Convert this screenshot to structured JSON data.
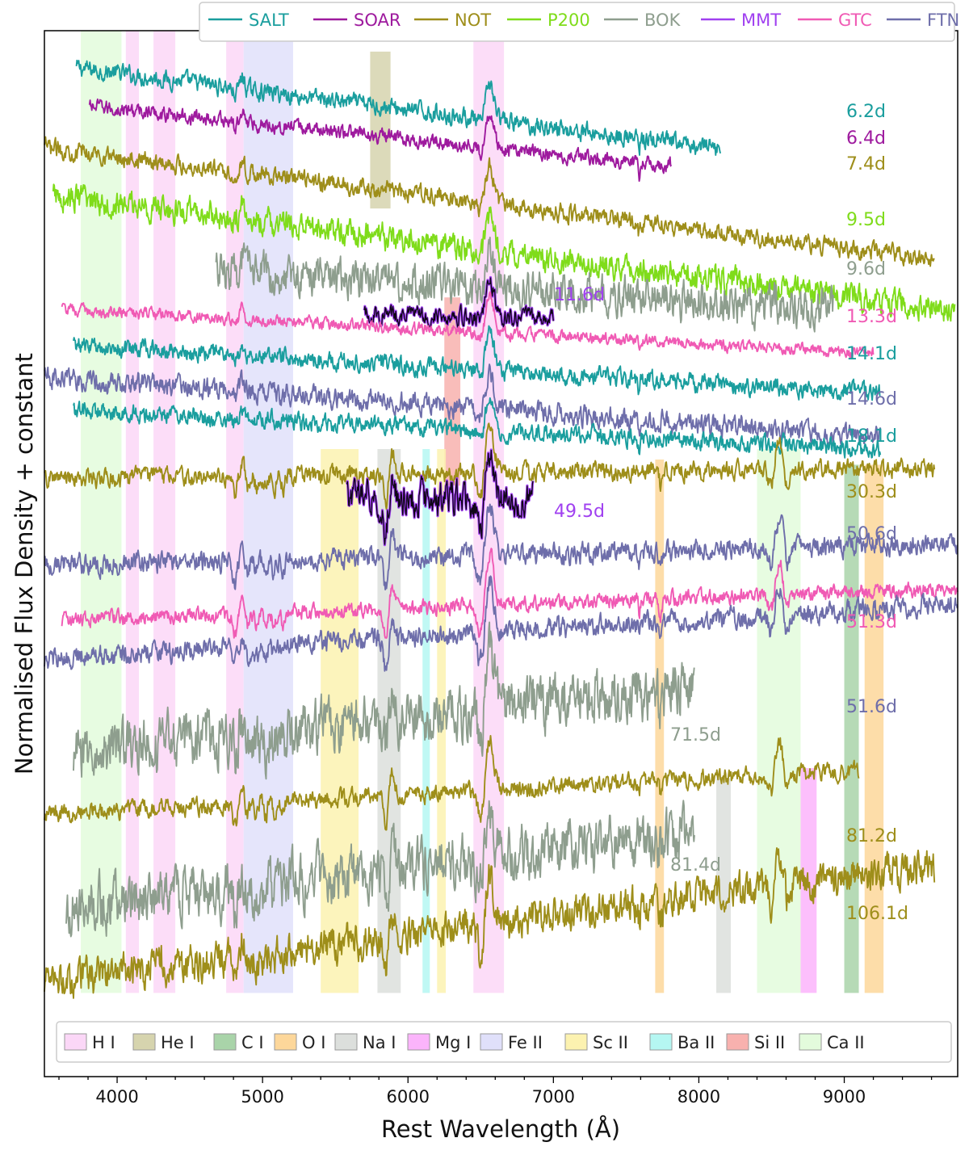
{
  "chart_data": {
    "type": "line",
    "xlabel": "Rest Wavelength (Å)",
    "ylabel": "Normalised Flux Density + constant",
    "xlim": [
      3500,
      9780
    ],
    "x_ticks": [
      4000,
      5000,
      6000,
      7000,
      8000,
      9000
    ],
    "grid": false,
    "telescopes": [
      {
        "name": "SALT",
        "color": "#1a9e9e"
      },
      {
        "name": "SOAR",
        "color": "#9e1a9e"
      },
      {
        "name": "NOT",
        "color": "#9e8e1a"
      },
      {
        "name": "P200",
        "color": "#7fdc1a"
      },
      {
        "name": "BOK",
        "color": "#8e9e8e"
      },
      {
        "name": "MMT",
        "color": "#a040f0"
      },
      {
        "name": "GTC",
        "color": "#f05ab4"
      },
      {
        "name": "FTN",
        "color": "#6e6eaa"
      }
    ],
    "telescope_legend_position": "top-center",
    "line_species": [
      {
        "name": "H I",
        "color": "#fbd7f7"
      },
      {
        "name": "He I",
        "color": "#d6d4ae"
      },
      {
        "name": "C I",
        "color": "#a9d4a9"
      },
      {
        "name": "O I",
        "color": "#fdd79a"
      },
      {
        "name": "Na I",
        "color": "#dcdfdc"
      },
      {
        "name": "Mg I",
        "color": "#fbb4fb"
      },
      {
        "name": "Fe II",
        "color": "#e0e0fa"
      },
      {
        "name": "Sc II",
        "color": "#fcf2b0"
      },
      {
        "name": "Ba II",
        "color": "#b5f7f2"
      },
      {
        "name": "Si II",
        "color": "#f8b1ae"
      },
      {
        "name": "Ca II",
        "color": "#e3fbdc"
      }
    ],
    "line_legend_position": "bottom",
    "line_regions": [
      {
        "species": "Ca II",
        "x0": 3750,
        "x1": 4030,
        "y_span": [
          0.08,
          1.0
        ]
      },
      {
        "species": "H I",
        "x0": 4060,
        "x1": 4150,
        "y_span": [
          0.08,
          1.0
        ]
      },
      {
        "species": "H I",
        "x0": 4250,
        "x1": 4400,
        "y_span": [
          0.08,
          1.0
        ]
      },
      {
        "species": "H I",
        "x0": 4750,
        "x1": 4870,
        "y_span": [
          0.08,
          1.0
        ]
      },
      {
        "species": "Fe II",
        "x0": 4870,
        "x1": 5210,
        "y_span": [
          0.08,
          1.0
        ]
      },
      {
        "species": "H I",
        "x0": 6450,
        "x1": 6660,
        "y_span": [
          0.08,
          1.0
        ]
      },
      {
        "species": "He I",
        "x0": 5740,
        "x1": 5880,
        "y_span": [
          0.83,
          0.98
        ]
      },
      {
        "species": "Si II",
        "x0": 6250,
        "x1": 6360,
        "y_span": [
          0.565,
          0.745
        ]
      },
      {
        "species": "Sc II",
        "x0": 5400,
        "x1": 5660,
        "y_span": [
          0.08,
          0.6
        ]
      },
      {
        "species": "Na I",
        "x0": 5790,
        "x1": 5950,
        "y_span": [
          0.08,
          0.6
        ]
      },
      {
        "species": "Ba II",
        "x0": 6100,
        "x1": 6150,
        "y_span": [
          0.08,
          0.6
        ]
      },
      {
        "species": "Sc II",
        "x0": 6200,
        "x1": 6260,
        "y_span": [
          0.08,
          0.6
        ]
      },
      {
        "species": "O I",
        "x0": 7700,
        "x1": 7760,
        "y_span": [
          0.08,
          0.59
        ]
      },
      {
        "species": "Ca II",
        "x0": 8400,
        "x1": 8700,
        "y_span": [
          0.08,
          0.6
        ]
      },
      {
        "species": "Na I",
        "x0": 8120,
        "x1": 8220,
        "y_span": [
          0.08,
          0.285
        ]
      },
      {
        "species": "Mg I",
        "x0": 8700,
        "x1": 8810,
        "y_span": [
          0.08,
          0.295
        ]
      },
      {
        "species": "C I",
        "x0": 9000,
        "x1": 9100,
        "y_span": [
          0.08,
          0.585
        ]
      },
      {
        "species": "O I",
        "x0": 9140,
        "x1": 9270,
        "y_span": [
          0.08,
          0.585
        ]
      }
    ],
    "epochs": [
      {
        "label": "6.2d",
        "telescope": "SALT",
        "color": "#1a9e9e",
        "x_range": [
          3720,
          8150
        ],
        "offset": 0.935,
        "slope": 0.105,
        "noise": 0.006
      },
      {
        "label": "6.4d",
        "telescope": "SOAR",
        "color": "#9e1a9e",
        "x_range": [
          3810,
          7810
        ],
        "offset": 0.905,
        "slope": 0.085,
        "noise": 0.005
      },
      {
        "label": "7.4d",
        "telescope": "NOT",
        "color": "#9e8e1a",
        "x_range": [
          3500,
          9620
        ],
        "offset": 0.855,
        "slope": 0.105,
        "noise": 0.006
      },
      {
        "label": "9.5d",
        "telescope": "P200",
        "color": "#7fdc1a",
        "x_range": [
          3560,
          9760
        ],
        "offset": 0.81,
        "slope": 0.105,
        "noise": 0.009
      },
      {
        "label": "9.6d",
        "telescope": "BOK",
        "color": "#8e9e8e",
        "x_range": [
          4680,
          8930
        ],
        "offset": 0.765,
        "slope": 0.055,
        "noise": 0.013
      },
      {
        "label": "11.6d",
        "telescope": "MMT",
        "color": "#a040f0",
        "x_range": [
          5700,
          7000
        ],
        "offset": 0.73,
        "slope": 0.015,
        "noise": 0.006
      },
      {
        "label": "13.3d",
        "telescope": "GTC",
        "color": "#f05ab4",
        "x_range": [
          3620,
          9200
        ],
        "offset": 0.72,
        "slope": 0.045,
        "noise": 0.004
      },
      {
        "label": "14.1d",
        "telescope": "SALT",
        "color": "#1a9e9e",
        "x_range": [
          3700,
          9250
        ],
        "offset": 0.685,
        "slope": 0.05,
        "noise": 0.006
      },
      {
        "label": "14.6d",
        "telescope": "FTN",
        "color": "#6e6eaa",
        "x_range": [
          3500,
          9250
        ],
        "offset": 0.65,
        "slope": 0.06,
        "noise": 0.007
      },
      {
        "label": "18.1d",
        "telescope": "SALT",
        "color": "#1a9e9e",
        "x_range": [
          3700,
          9250
        ],
        "offset": 0.625,
        "slope": 0.04,
        "noise": 0.006
      },
      {
        "label": "30.3d",
        "telescope": "NOT",
        "color": "#9e8e1a",
        "x_range": [
          3500,
          9620
        ],
        "offset": 0.575,
        "slope": -0.01,
        "noise": 0.006
      },
      {
        "label": "49.5d",
        "telescope": "MMT",
        "color": "#a040f0",
        "x_range": [
          5580,
          6860
        ],
        "offset": 0.555,
        "slope": 0.02,
        "noise": 0.012
      },
      {
        "label": "50.6d",
        "telescope": "FTN",
        "color": "#6e6eaa",
        "x_range": [
          3500,
          9780
        ],
        "offset": 0.495,
        "slope": -0.02,
        "noise": 0.007
      },
      {
        "label": "51.3d",
        "telescope": "GTC",
        "color": "#f05ab4",
        "x_range": [
          3620,
          9780
        ],
        "offset": 0.445,
        "slope": -0.03,
        "noise": 0.005
      },
      {
        "label": "51.6d",
        "telescope": "FTN",
        "color": "#6e6eaa",
        "x_range": [
          3500,
          9780
        ],
        "offset": 0.415,
        "slope": -0.05,
        "noise": 0.007
      },
      {
        "label": "71.5d",
        "telescope": "BOK",
        "color": "#8e9e8e",
        "x_range": [
          3700,
          7970
        ],
        "offset": 0.335,
        "slope": -0.09,
        "noise": 0.018
      },
      {
        "label": "81.2d",
        "telescope": "NOT",
        "color": "#9e8e1a",
        "x_range": [
          3500,
          9100
        ],
        "offset": 0.265,
        "slope": -0.045,
        "noise": 0.006
      },
      {
        "label": "81.4d",
        "telescope": "BOK",
        "color": "#8e9e8e",
        "x_range": [
          3650,
          7970
        ],
        "offset": 0.19,
        "slope": -0.1,
        "noise": 0.018
      },
      {
        "label": "106.1d",
        "telescope": "NOT",
        "color": "#9e8e1a",
        "x_range": [
          3500,
          9620
        ],
        "offset": 0.125,
        "slope": -0.11,
        "noise": 0.012
      }
    ]
  }
}
